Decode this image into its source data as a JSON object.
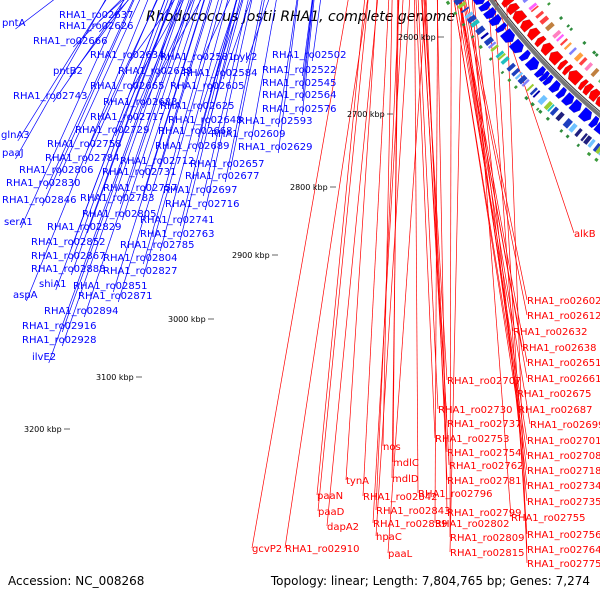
{
  "title": "Rhodococcus jostii RHA1, complete genome",
  "footer": {
    "accession": "Accession: NC_008268",
    "topology": "Topology: linear; Length: 7,804,765 bp; Genes: 7,274"
  },
  "ticks": [
    "2600 kbp",
    "2700 kbp",
    "2800 kbp",
    "2900 kbp",
    "3000 kbp",
    "3100 kbp",
    "3200 kbp"
  ],
  "colors": {
    "forward": "#0000ff",
    "reverse": "#ff0000",
    "backbone": "#777777"
  },
  "forward_labels": [
    "RHA1_ro02637",
    "pntA",
    "RHA1_ro02626",
    "RHA1_ro02666",
    "RHA1_ro02634",
    "RHA1_ro02581",
    "pyk2",
    "RHA1_ro02502",
    "pntB2",
    "RHA1_ro02639",
    "RHA1_ro02584",
    "RHA1_ro02522",
    "RHA1_ro02665",
    "RHA1_ro02605",
    "RHA1_ro02545",
    "RHA1_ro02743",
    "RHA1_ro02683",
    "RHA1_ro02564",
    "RHA1_ro02625",
    "RHA1_ro02576",
    "RHA1_ro02717",
    "RHA1_ro02593",
    "glnA3",
    "RHA1_ro02729",
    "RHA1_ro02648",
    "RHA1_ro02668",
    "RHA1_ro02609",
    "RHA1_ro02758",
    "RHA1_ro02689",
    "RHA1_ro02629",
    "paaJ",
    "RHA1_ro02784",
    "RHA1_ro02712",
    "RHA1_ro02657",
    "RHA1_ro02806",
    "RHA1_ro02731",
    "RHA1_ro02677",
    "RHA1_ro02830",
    "RHA1_ro02757",
    "RHA1_ro02697",
    "RHA1_ro02846",
    "RHA1_ro02783",
    "RHA1_ro02716",
    "RHA1_ro02805",
    "serA1",
    "RHA1_ro02741",
    "RHA1_ro02829",
    "RHA1_ro02763",
    "RHA1_ro02852",
    "RHA1_ro02785",
    "RHA1_ro02867",
    "RHA1_ro02804",
    "RHA1_ro02888",
    "RHA1_ro02827",
    "shiA1",
    "RHA1_ro02851",
    "aspA",
    "RHA1_ro02871",
    "RHA1_ro02894",
    "RHA1_ro02916",
    "RHA1_ro02928",
    "ilvE2"
  ],
  "reverse_labels": [
    "alkB",
    "RHA1_ro02602",
    "RHA1_ro02612",
    "RHA1_ro02632",
    "RHA1_ro02638",
    "RHA1_ro02651",
    "RHA1_ro02707",
    "RHA1_ro02661",
    "RHA1_ro02675",
    "RHA1_ro02730",
    "RHA1_ro02687",
    "RHA1_ro02737",
    "RHA1_ro02699",
    "RHA1_ro02753",
    "RHA1_ro02701",
    "nos",
    "RHA1_ro02754",
    "RHA1_ro02708",
    "mdlC",
    "RHA1_ro02762",
    "RHA1_ro02718",
    "mdlD",
    "RHA1_ro02781",
    "tynA",
    "RHA1_ro02734",
    "RHA1_ro02796",
    "paaN",
    "RHA1_ro02842",
    "RHA1_ro02735",
    "paaD",
    "RHA1_ro02843",
    "RHA1_ro02799",
    "RHA1_ro02755",
    "dapA2",
    "RHA1_ro02839",
    "RHA1_ro02802",
    "RHA1_ro02756",
    "hpaC",
    "RHA1_ro02809",
    "RHA1_ro02764",
    "gcvP2",
    "RHA1_ro02910",
    "paaL",
    "RHA1_ro02815",
    "RHA1_ro02775"
  ]
}
